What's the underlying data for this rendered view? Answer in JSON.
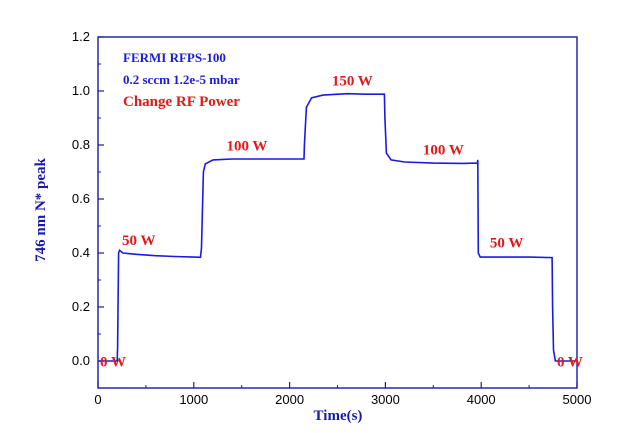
{
  "chart_data": {
    "type": "line",
    "xlabel": "Time(s)",
    "ylabel": "746 nm N* peak",
    "xlim": [
      0,
      5000
    ],
    "ylim": [
      -0.1,
      1.2
    ],
    "xticks": [
      0,
      1000,
      2000,
      3000,
      4000,
      5000
    ],
    "xtick_labels": [
      "0",
      "1000",
      "2000",
      "3000",
      "4000",
      "5000"
    ],
    "yticks": [
      0.0,
      0.2,
      0.4,
      0.6,
      0.8,
      1.0,
      1.2
    ],
    "ytick_labels": [
      "0.0",
      "0.2",
      "0.4",
      "0.6",
      "0.8",
      "1.0",
      "1.2"
    ],
    "grid": false,
    "series": [
      {
        "color": "#1a1ae0",
        "points": [
          [
            0,
            0.0
          ],
          [
            200,
            0.0
          ],
          [
            205,
            0.05
          ],
          [
            215,
            0.4
          ],
          [
            225,
            0.41
          ],
          [
            260,
            0.4
          ],
          [
            400,
            0.395
          ],
          [
            600,
            0.39
          ],
          [
            800,
            0.387
          ],
          [
            1000,
            0.385
          ],
          [
            1070,
            0.384
          ],
          [
            1080,
            0.42
          ],
          [
            1100,
            0.7
          ],
          [
            1120,
            0.73
          ],
          [
            1200,
            0.745
          ],
          [
            1400,
            0.748
          ],
          [
            1700,
            0.748
          ],
          [
            2000,
            0.748
          ],
          [
            2150,
            0.748
          ],
          [
            2155,
            0.8
          ],
          [
            2175,
            0.94
          ],
          [
            2230,
            0.975
          ],
          [
            2350,
            0.985
          ],
          [
            2600,
            0.99
          ],
          [
            2800,
            0.988
          ],
          [
            2990,
            0.988
          ],
          [
            2995,
            0.9
          ],
          [
            3010,
            0.77
          ],
          [
            3060,
            0.745
          ],
          [
            3200,
            0.737
          ],
          [
            3500,
            0.733
          ],
          [
            3800,
            0.732
          ],
          [
            3960,
            0.733
          ],
          [
            3965,
            0.745
          ],
          [
            3970,
            0.4
          ],
          [
            3990,
            0.385
          ],
          [
            4200,
            0.385
          ],
          [
            4500,
            0.385
          ],
          [
            4740,
            0.383
          ],
          [
            4745,
            0.2
          ],
          [
            4755,
            0.04
          ],
          [
            4775,
            0.0
          ],
          [
            5000,
            0.0
          ]
        ]
      }
    ],
    "annotations": {
      "title_line1": "FERMI RFPS-100",
      "title_line2": "0.2 sccm 1.2e-5 mbar",
      "title_line3": "Change RF Power",
      "power_labels": [
        {
          "text": "0 W",
          "x": 0,
          "y": -0.02
        },
        {
          "text": "50 W",
          "x": 230,
          "y": 0.43
        },
        {
          "text": "100 W",
          "x": 1320,
          "y": 0.78
        },
        {
          "text": "150 W",
          "x": 2420,
          "y": 1.02
        },
        {
          "text": "100 W",
          "x": 3370,
          "y": 0.765
        },
        {
          "text": "50 W",
          "x": 4070,
          "y": 0.42
        },
        {
          "text": "0 W",
          "x": 4770,
          "y": -0.02
        }
      ]
    }
  }
}
